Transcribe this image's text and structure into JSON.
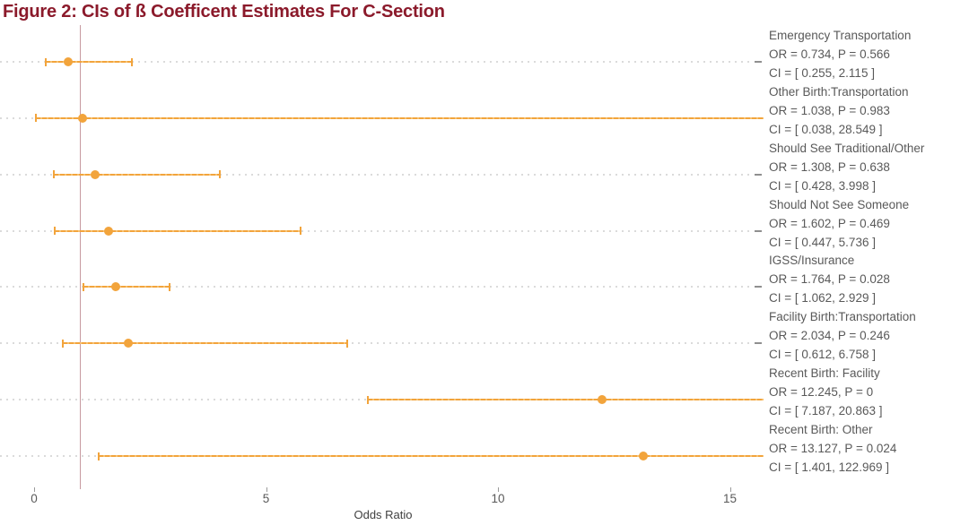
{
  "chart_data": {
    "type": "scatter",
    "subtype": "forest-plot-with-error-bars",
    "title": "Figure 2: CIs of ß Coefficent Estimates For C-Section",
    "xlabel": "Odds Ratio",
    "xticks": [
      0,
      5,
      10,
      15
    ],
    "xlim": [
      -0.7,
      15.8
    ],
    "reference_line_x": 1,
    "grid": "dotted horizontal guide per row",
    "legend": "none",
    "colors": {
      "point_and_ci": "#F2A43C",
      "title": "#8B1A2B",
      "grid": "#DBDBDB",
      "labels": "#595959",
      "reference_line": "#C79AA0"
    },
    "rows": [
      {
        "name": "Emergency Transportation",
        "or": 0.734,
        "p": 0.566,
        "ci": [
          0.255,
          2.115
        ],
        "or_text": "OR = 0.734, P = 0.566",
        "ci_text": "CI = [ 0.255, 2.115 ]"
      },
      {
        "name": "Other Birth:Transportation",
        "or": 1.038,
        "p": 0.983,
        "ci": [
          0.038,
          28.549
        ],
        "or_text": "OR = 1.038, P = 0.983",
        "ci_text": "CI = [ 0.038, 28.549 ]"
      },
      {
        "name": "Should See Traditional/Other",
        "or": 1.308,
        "p": 0.638,
        "ci": [
          0.428,
          3.998
        ],
        "or_text": "OR = 1.308, P = 0.638",
        "ci_text": "CI = [ 0.428, 3.998 ]"
      },
      {
        "name": "Should Not See Someone",
        "or": 1.602,
        "p": 0.469,
        "ci": [
          0.447,
          5.736
        ],
        "or_text": "OR = 1.602, P = 0.469",
        "ci_text": "CI = [ 0.447, 5.736 ]"
      },
      {
        "name": "IGSS/Insurance",
        "or": 1.764,
        "p": 0.028,
        "ci": [
          1.062,
          2.929
        ],
        "or_text": "OR = 1.764, P = 0.028",
        "ci_text": "CI = [ 1.062, 2.929 ]"
      },
      {
        "name": "Facility Birth:Transportation",
        "or": 2.034,
        "p": 0.246,
        "ci": [
          0.612,
          6.758
        ],
        "or_text": "OR = 2.034, P = 0.246",
        "ci_text": "CI = [ 0.612, 6.758 ]"
      },
      {
        "name": "Recent Birth: Facility",
        "or": 12.245,
        "p": 0,
        "ci": [
          7.187,
          20.863
        ],
        "or_text": "OR = 12.245, P = 0",
        "ci_text": "CI = [ 7.187, 20.863 ]"
      },
      {
        "name": "Recent Birth: Other",
        "or": 13.127,
        "p": 0.024,
        "ci": [
          1.401,
          122.969
        ],
        "or_text": "OR = 13.127, P = 0.024",
        "ci_text": "CI = [ 1.401, 122.969 ]"
      }
    ]
  }
}
